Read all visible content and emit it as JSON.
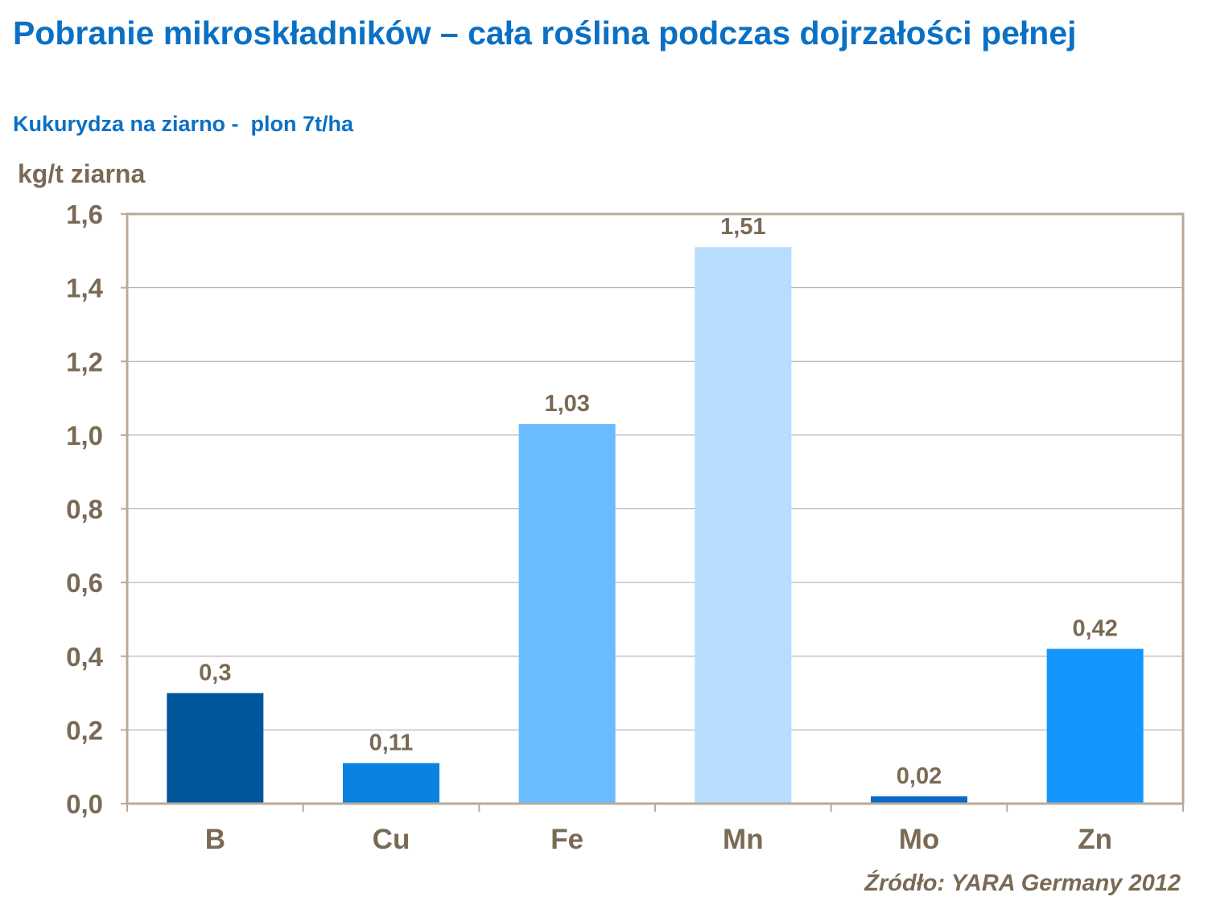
{
  "title": "Pobranie mikroskładników – cała roślina podczas dojrzałości pełnej",
  "subtitle": "Kukurydza na ziarno -  plon 7t/ha",
  "source": "Źródło: YARA Germany 2012",
  "chart_data": {
    "type": "bar",
    "ylabel": "kg/t ziarna",
    "xlabel": "",
    "categories": [
      "B",
      "Cu",
      "Fe",
      "Mn",
      "Mo",
      "Zn"
    ],
    "values": [
      0.3,
      0.11,
      1.03,
      1.51,
      0.02,
      0.42
    ],
    "data_labels": [
      "0,3",
      "0,11",
      "1,03",
      "1,51",
      "0,02",
      "0,42"
    ],
    "bar_colors": [
      "#00569a",
      "#0a82e0",
      "#69bcff",
      "#b7ddff",
      "#0a6bc4",
      "#1496ff"
    ],
    "ylim": [
      0,
      1.6
    ],
    "yticks": [
      0,
      0.2,
      0.4,
      0.6,
      0.8,
      1.0,
      1.2,
      1.4,
      1.6
    ],
    "ytick_labels": [
      "0,0",
      "0,2",
      "0,4",
      "0,6",
      "0,8",
      "1,0",
      "1,2",
      "1,4",
      "1,6"
    ],
    "grid": true,
    "legend": "none",
    "colors": {
      "frame": "#b9aa9a",
      "grid": "#a6a6a6",
      "text": "#7a6a55"
    }
  }
}
